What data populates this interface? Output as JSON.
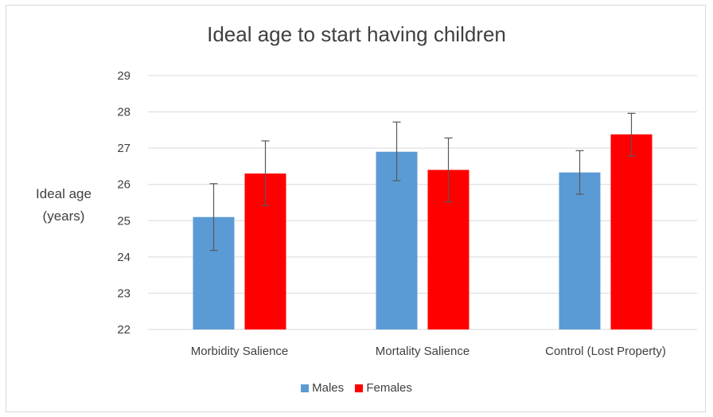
{
  "chart_data": {
    "type": "bar",
    "title": "Ideal age to start having children",
    "ylabel_line1": "Ideal age",
    "ylabel_line2": "(years)",
    "xlabel": "",
    "ylim": [
      22,
      29
    ],
    "yticks": [
      22,
      23,
      24,
      25,
      26,
      27,
      28,
      29
    ],
    "grid": true,
    "legend_position": "bottom",
    "categories": [
      "Morbidity Salience",
      "Mortality Salience",
      "Control (Lost Property)"
    ],
    "series": [
      {
        "name": "Males",
        "color": "#5b9bd5",
        "values": [
          25.1,
          26.9,
          26.33
        ],
        "error_low": [
          24.18,
          26.1,
          25.73
        ],
        "error_high": [
          26.02,
          27.72,
          26.93
        ]
      },
      {
        "name": "Females",
        "color": "#ff0000",
        "values": [
          26.3,
          26.4,
          27.38
        ],
        "error_low": [
          25.42,
          25.52,
          26.78
        ],
        "error_high": [
          27.2,
          27.28,
          27.96
        ]
      }
    ]
  }
}
